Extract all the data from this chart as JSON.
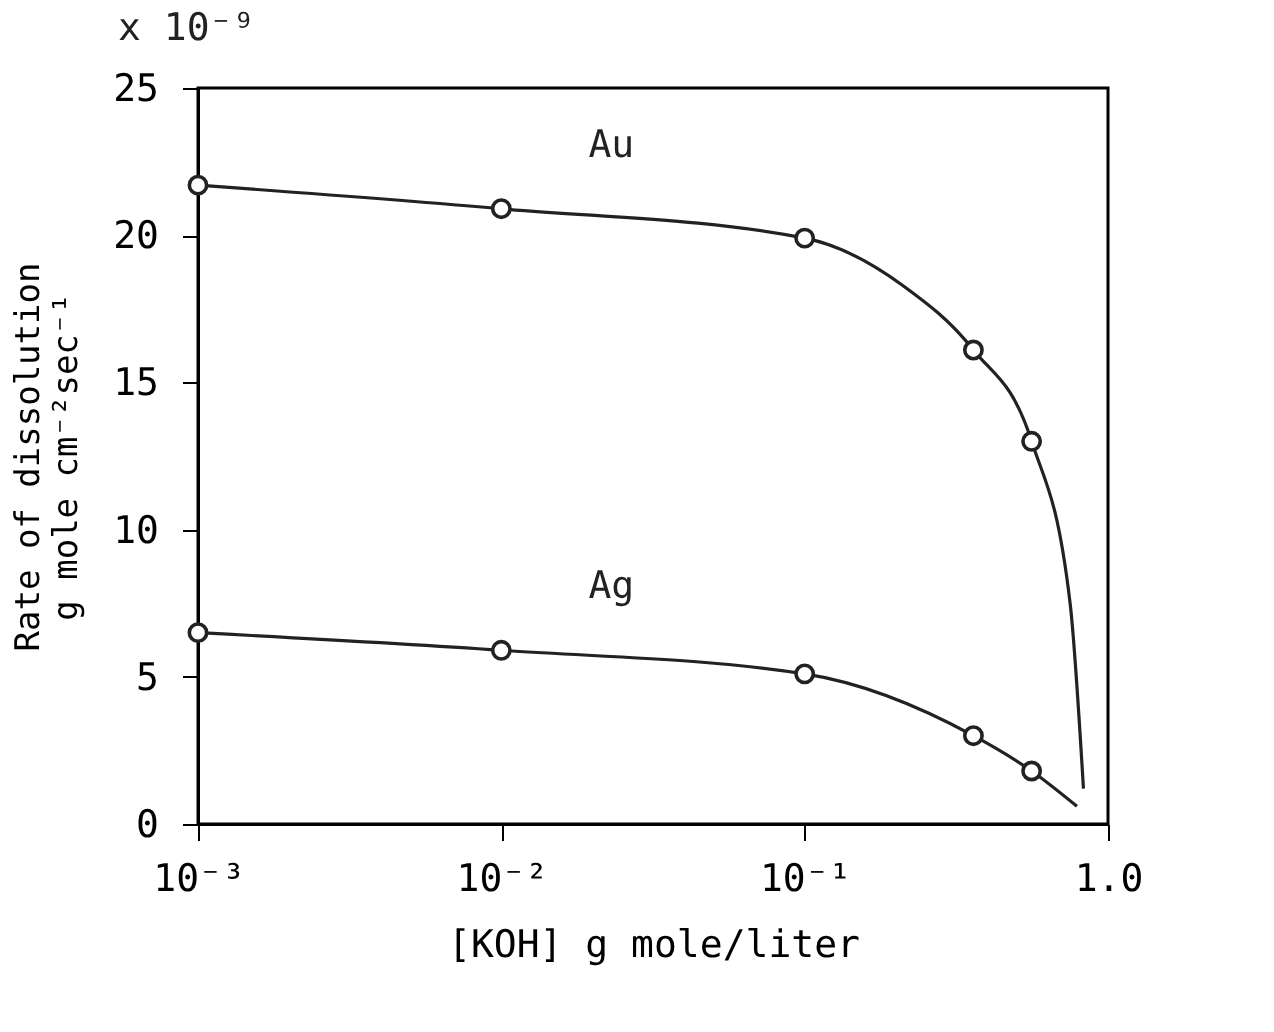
{
  "chart_data": {
    "type": "line",
    "xlabel": "[KOH] g mole/liter",
    "ylabel": "Rate of dissolution\ng mole cm⁻²sec⁻¹",
    "log": "x",
    "grid": false,
    "xlim": [
      0.001,
      1
    ],
    "xticks": [
      {
        "value": 0.001,
        "label": "10⁻³"
      },
      {
        "value": 0.01,
        "label": "10⁻²"
      },
      {
        "value": 0.1,
        "label": "10⁻¹"
      },
      {
        "value": 1,
        "label": "1.0"
      }
    ],
    "ylim": [
      0,
      25
    ],
    "yticks": [
      0,
      5,
      10,
      15,
      20,
      25
    ],
    "series": [
      {
        "name": "Au",
        "color": "#222222",
        "marker": "none",
        "x": [
          0.001,
          0.01,
          0.1,
          0.21,
          0.36,
          0.56,
          0.75,
          0.83
        ],
        "values": [
          21.7,
          20.9,
          19.9,
          18.3,
          16.1,
          13.0,
          7.5,
          1.2
        ]
      },
      {
        "type": "scatter",
        "color": "#222222",
        "marker": "circle",
        "x": [
          0.001,
          0.01,
          0.1,
          0.36,
          0.56
        ],
        "values": [
          21.7,
          20.9,
          19.9,
          16.1,
          13.0
        ]
      },
      {
        "name": "Ag",
        "color": "#222222",
        "marker": "none",
        "x": [
          0.001,
          0.01,
          0.1,
          0.36,
          0.56,
          0.79
        ],
        "values": [
          6.5,
          5.9,
          5.1,
          3.0,
          1.8,
          0.6
        ]
      },
      {
        "type": "scatter",
        "color": "#222222",
        "marker": "circle",
        "x": [
          0.001,
          0.01,
          0.1,
          0.36,
          0.56
        ],
        "values": [
          6.5,
          5.9,
          5.1,
          3.0,
          1.8
        ]
      }
    ],
    "annotations": [
      "x 10⁻⁹"
    ]
  }
}
